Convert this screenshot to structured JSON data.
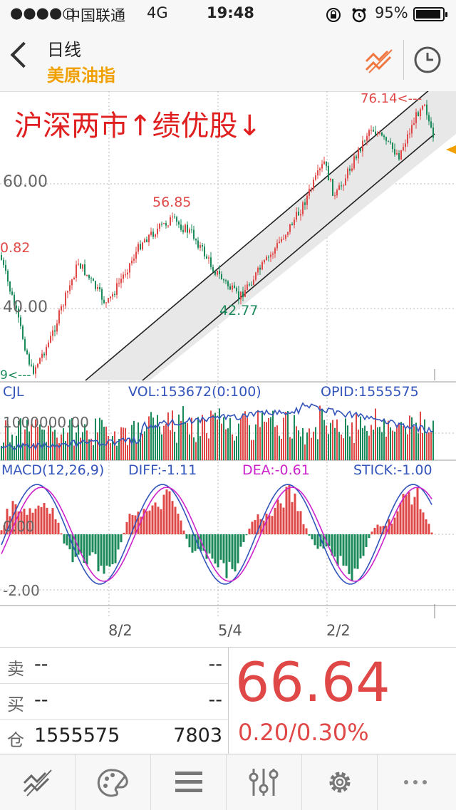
{
  "status_bar": {
    "signal": "●●●●○",
    "carrier": "中国联通",
    "network": "4G",
    "time": "19:48",
    "battery": "95%",
    "battery_level": 0.95
  },
  "nav": {
    "title": "日线",
    "subtitle": "美原油指"
  },
  "colors": {
    "up": "#e04848",
    "down": "#1a8a5a",
    "accent": "#f0a000",
    "macd_diff": "#3355bb",
    "macd_dea": "#cc22cc"
  },
  "price_panel": {
    "overlay_text": "沪深两市↑绩优股↓",
    "y_labels": [
      "60.00",
      "40.00"
    ],
    "annotations": {
      "high": "76.14<---",
      "mid_high": "56.85",
      "low": "42.77",
      "left_val": "0.82",
      "left_low": "9<---"
    }
  },
  "volume_panel": {
    "label": "CJL",
    "vol": "VOL:153672(0:100)",
    "opid": "OPID:1555575",
    "y_label": "1000000.00"
  },
  "macd_panel": {
    "label": "MACD(12,26,9)",
    "diff": "DIFF:-1.11",
    "dea": "DEA:-0.61",
    "stick": "STICK:-1.00",
    "y_labels": [
      "0.00",
      "-2.00"
    ]
  },
  "x_axis": [
    "8/2",
    "5/4",
    "2/2"
  ],
  "quote": {
    "sell_label": "卖",
    "sell_value": "--",
    "sell_vol": "--",
    "buy_label": "买",
    "buy_value": "--",
    "buy_vol": "--",
    "pos_label": "仓",
    "pos_value": "1555575",
    "pos_vol": "7803",
    "price": "66.64",
    "change": "0.20/0.30%"
  },
  "tabs": [
    {
      "icon": "kline-icon"
    },
    {
      "icon": "palette-icon"
    },
    {
      "icon": "menu-icon"
    },
    {
      "icon": "sliders-icon"
    },
    {
      "icon": "gear-icon"
    },
    {
      "icon": "more-icon"
    }
  ],
  "chart_data": {
    "type": "candlestick",
    "x_ticks": [
      "8/2",
      "5/4",
      "2/2"
    ],
    "price_anchors": [
      {
        "label": "60.00"
      },
      {
        "label": "40.00"
      }
    ],
    "notable_values": [
      76.14,
      56.85,
      42.77
    ]
  }
}
